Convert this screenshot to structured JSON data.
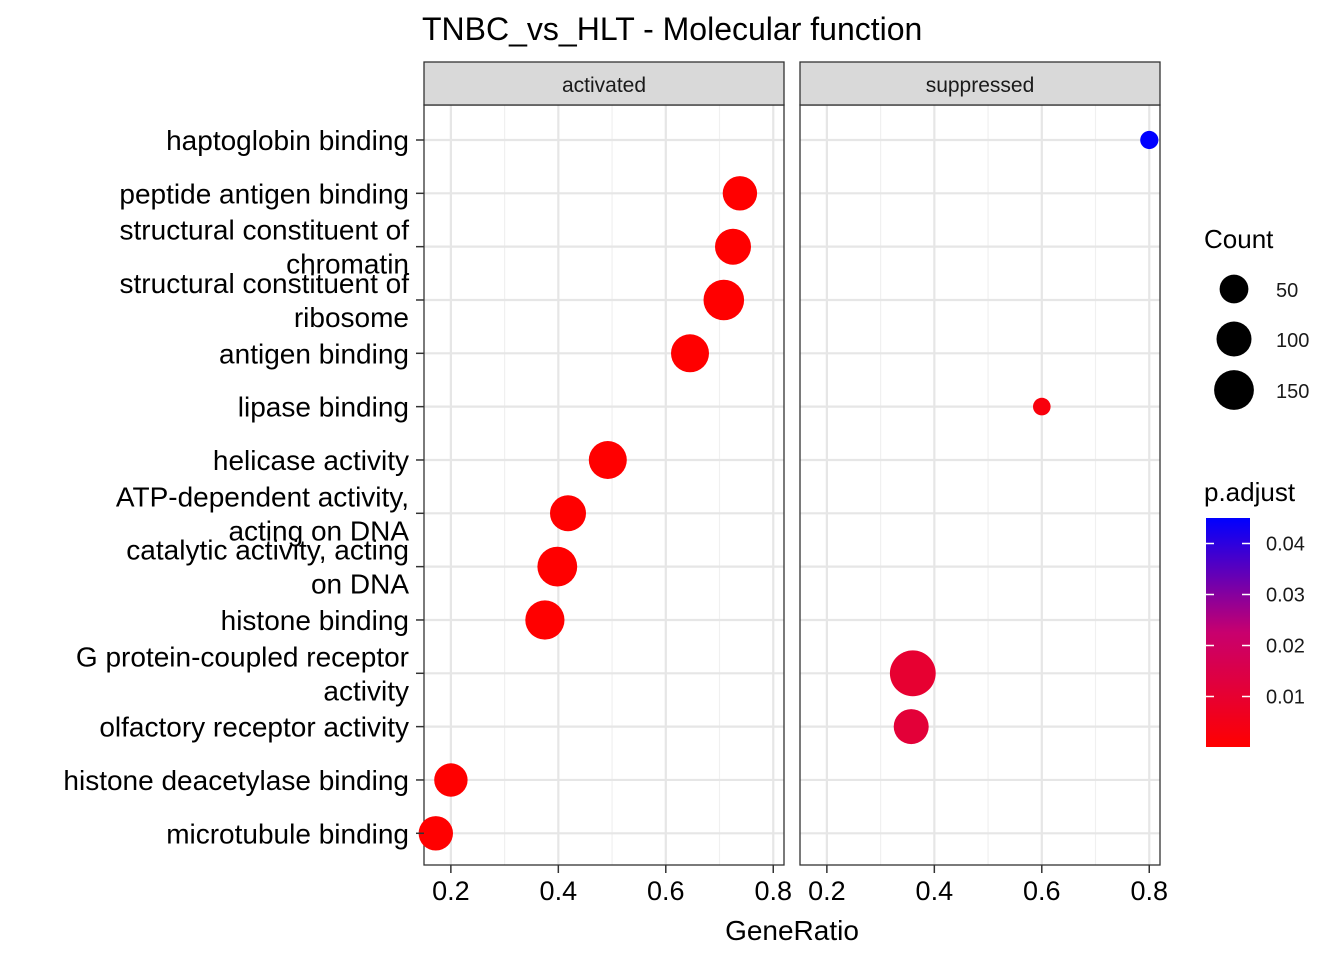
{
  "chart_data": {
    "type": "scatter",
    "title": "TNBC_vs_HLT - Molecular function",
    "xlabel": "GeneRatio",
    "ylabel": "",
    "xlim": [
      0.15,
      0.82
    ],
    "xticks": [
      "0.2",
      "0.4",
      "0.6",
      "0.8"
    ],
    "grid": true,
    "facets": [
      {
        "label": "activated"
      },
      {
        "label": "suppressed"
      }
    ],
    "categories": [
      [
        "haptoglobin binding"
      ],
      [
        "peptide antigen binding"
      ],
      [
        "structural constituent of",
        "chromatin"
      ],
      [
        "structural constituent of",
        "ribosome"
      ],
      [
        "antigen binding"
      ],
      [
        "lipase binding"
      ],
      [
        "helicase activity"
      ],
      [
        "ATP-dependent activity,",
        "acting on DNA"
      ],
      [
        "catalytic activity, acting",
        "on DNA"
      ],
      [
        "histone binding"
      ],
      [
        "G protein-coupled receptor",
        "activity"
      ],
      [
        "olfactory receptor activity"
      ],
      [
        "histone deacetylase binding"
      ],
      [
        "microtubule binding"
      ]
    ],
    "points": [
      {
        "facet": 0,
        "category": 1,
        "x": 0.738,
        "count": 95,
        "p_adjust": 0.0001
      },
      {
        "facet": 0,
        "category": 2,
        "x": 0.725,
        "count": 110,
        "p_adjust": 0.0001
      },
      {
        "facet": 0,
        "category": 3,
        "x": 0.708,
        "count": 160,
        "p_adjust": 0.0001
      },
      {
        "facet": 0,
        "category": 4,
        "x": 0.645,
        "count": 130,
        "p_adjust": 0.0001
      },
      {
        "facet": 0,
        "category": 6,
        "x": 0.492,
        "count": 130,
        "p_adjust": 0.0001
      },
      {
        "facet": 0,
        "category": 7,
        "x": 0.418,
        "count": 110,
        "p_adjust": 0.0001
      },
      {
        "facet": 0,
        "category": 8,
        "x": 0.398,
        "count": 150,
        "p_adjust": 0.0001
      },
      {
        "facet": 0,
        "category": 9,
        "x": 0.375,
        "count": 145,
        "p_adjust": 0.0001
      },
      {
        "facet": 0,
        "category": 12,
        "x": 0.2,
        "count": 85,
        "p_adjust": 0.0001
      },
      {
        "facet": 0,
        "category": 13,
        "x": 0.172,
        "count": 95,
        "p_adjust": 0.0001
      },
      {
        "facet": 1,
        "category": 0,
        "x": 0.8,
        "count": 4,
        "p_adjust": 0.045
      },
      {
        "facet": 1,
        "category": 5,
        "x": 0.6,
        "count": 3,
        "p_adjust": 0.0025
      },
      {
        "facet": 1,
        "category": 10,
        "x": 0.36,
        "count": 230,
        "p_adjust": 0.01
      },
      {
        "facet": 1,
        "category": 11,
        "x": 0.357,
        "count": 100,
        "p_adjust": 0.0115
      }
    ],
    "legend_size": {
      "title": "Count",
      "entries": [
        {
          "label": "50",
          "value": 50
        },
        {
          "label": "100",
          "value": 100
        },
        {
          "label": "150",
          "value": 150
        }
      ]
    },
    "legend_color": {
      "title": "p.adjust",
      "range": [
        0.0001,
        0.045
      ],
      "low_color": "#ff0000",
      "high_color": "#0000ff",
      "ticks": [
        {
          "label": "0.04",
          "value": 0.04
        },
        {
          "label": "0.03",
          "value": 0.03
        },
        {
          "label": "0.02",
          "value": 0.02
        },
        {
          "label": "0.01",
          "value": 0.01
        }
      ]
    },
    "legend_placement": "right"
  }
}
